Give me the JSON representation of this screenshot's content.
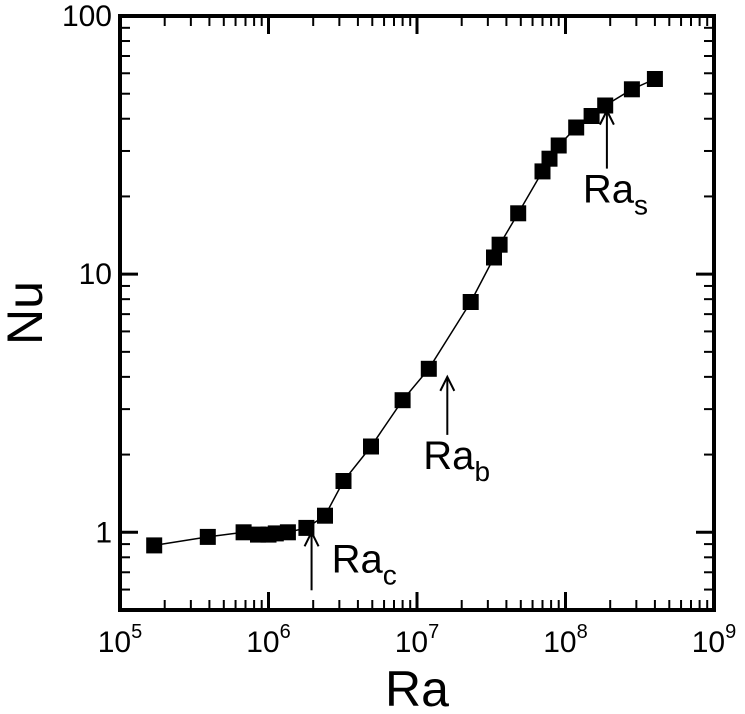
{
  "chart_data": {
    "type": "scatter",
    "xlabel": "Ra",
    "ylabel": "Nu",
    "xscale": "log",
    "yscale": "log",
    "xlim": [
      100000,
      1000000000
    ],
    "ylim": [
      0.5,
      100
    ],
    "grid": false,
    "legend": "none",
    "connected_line": true,
    "marker": "square",
    "color": "#000000",
    "x_ticks": [
      {
        "base": "10",
        "exp": "5",
        "value": 100000
      },
      {
        "base": "10",
        "exp": "6",
        "value": 1000000
      },
      {
        "base": "10",
        "exp": "7",
        "value": 10000000
      },
      {
        "base": "10",
        "exp": "8",
        "value": 100000000
      },
      {
        "base": "10",
        "exp": "9",
        "value": 1000000000
      }
    ],
    "y_ticks": [
      {
        "label": "1",
        "value": 1
      },
      {
        "label": "10",
        "value": 10
      },
      {
        "label": "100",
        "value": 100
      }
    ],
    "points": [
      {
        "x": 170000,
        "y": 0.89
      },
      {
        "x": 390000,
        "y": 0.96
      },
      {
        "x": 680000,
        "y": 1.0
      },
      {
        "x": 850000,
        "y": 0.98
      },
      {
        "x": 1000000,
        "y": 0.98
      },
      {
        "x": 1120000,
        "y": 0.99
      },
      {
        "x": 1350000,
        "y": 1.0
      },
      {
        "x": 1800000,
        "y": 1.04
      },
      {
        "x": 2400000,
        "y": 1.16
      },
      {
        "x": 3200000,
        "y": 1.58
      },
      {
        "x": 4900000,
        "y": 2.15
      },
      {
        "x": 8000000,
        "y": 3.25
      },
      {
        "x": 12000000,
        "y": 4.3
      },
      {
        "x": 23000000,
        "y": 7.8
      },
      {
        "x": 33000000,
        "y": 11.6
      },
      {
        "x": 36000000,
        "y": 13.0
      },
      {
        "x": 48000000,
        "y": 17.2
      },
      {
        "x": 70000000,
        "y": 25.0
      },
      {
        "x": 78000000,
        "y": 28.0
      },
      {
        "x": 90000000,
        "y": 31.5
      },
      {
        "x": 118000000,
        "y": 37.0
      },
      {
        "x": 150000000,
        "y": 41.0
      },
      {
        "x": 185000000,
        "y": 45.0
      },
      {
        "x": 280000000,
        "y": 52.0
      },
      {
        "x": 400000000,
        "y": 57.0
      }
    ],
    "annotations": [
      {
        "base": "Ra",
        "sub": "c",
        "x": 1950000,
        "y": 1.0
      },
      {
        "base": "Ra",
        "sub": "b",
        "x": 16000000,
        "y": 4.0
      },
      {
        "base": "Ra",
        "sub": "s",
        "x": 190000000,
        "y": 43.0
      }
    ]
  }
}
